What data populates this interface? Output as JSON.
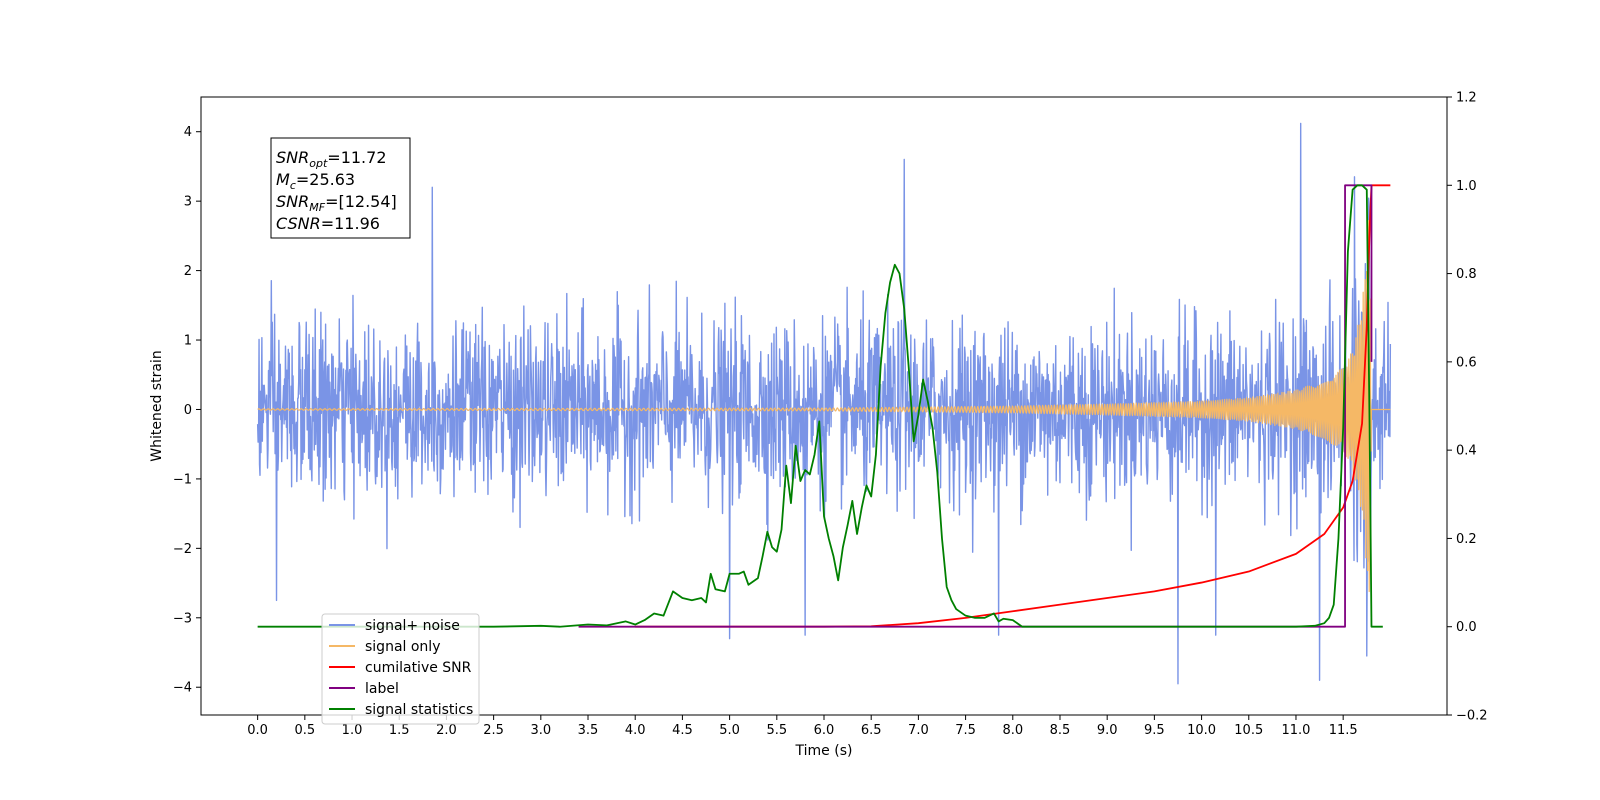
{
  "chart_data": {
    "type": "line",
    "xlabel": "Time (s)",
    "ylabel": "Whitened strain",
    "xlim": [
      -0.6,
      12.6
    ],
    "ylim": [
      -4.4,
      4.5
    ],
    "ylim_right": [
      -0.2,
      1.2
    ],
    "x_ticks": [
      0.0,
      0.5,
      1.0,
      1.5,
      2.0,
      2.5,
      3.0,
      3.5,
      4.0,
      4.5,
      5.0,
      5.5,
      6.0,
      6.5,
      7.0,
      7.5,
      8.0,
      8.5,
      9.0,
      9.5,
      10.0,
      10.5,
      11.0,
      11.5
    ],
    "x_tick_labels": [
      "0.0",
      "0.5",
      "1.0",
      "1.5",
      "2.0",
      "2.5",
      "3.0",
      "3.5",
      "4.0",
      "4.5",
      "5.0",
      "5.5",
      "6.0",
      "6.5",
      "7.0",
      "7.5",
      "8.0",
      "8.5",
      "9.0",
      "9.5",
      "10.0",
      "10.5",
      "11.0",
      "11.5"
    ],
    "y_ticks": [
      -4,
      -3,
      -2,
      -1,
      0,
      1,
      2,
      3,
      4
    ],
    "y_tick_labels": [
      "−4",
      "−3",
      "−2",
      "−1",
      "0",
      "1",
      "2",
      "3",
      "4"
    ],
    "y2_ticks": [
      -0.2,
      0.0,
      0.2,
      0.4,
      0.6,
      0.8,
      1.0,
      1.2
    ],
    "y2_tick_labels": [
      "−0.2",
      "0.0",
      "0.2",
      "0.4",
      "0.6",
      "0.8",
      "1.0",
      "1.2"
    ],
    "grid": false,
    "legend_placement": "lower-left",
    "annotation": {
      "lines": [
        {
          "sym": "SNR",
          "sub": "opt",
          "rest": "=11.72"
        },
        {
          "sym": "M",
          "sub": "c",
          "rest": "=25.63"
        },
        {
          "sym": "SNR",
          "sub": "MF",
          "rest": "=[12.54]"
        },
        {
          "sym": "CSNR",
          "sub": "",
          "rest": "=11.96"
        }
      ]
    },
    "series": [
      {
        "name": "signal+ noise",
        "color": "#7a94e6",
        "axis": "left",
        "x_range": [
          0.0,
          12.0
        ],
        "typical_amplitude": 1.3,
        "observed_max": 4.12,
        "observed_min": -3.95,
        "spikes": [
          {
            "x": 11.05,
            "y": 4.12
          },
          {
            "x": 6.85,
            "y": 3.6
          },
          {
            "x": 1.85,
            "y": 3.2
          },
          {
            "x": 11.62,
            "y": 3.35
          },
          {
            "x": 9.75,
            "y": -3.95
          },
          {
            "x": 11.25,
            "y": -3.9
          },
          {
            "x": 11.75,
            "y": -3.55
          },
          {
            "x": 5.0,
            "y": -3.3
          },
          {
            "x": 10.15,
            "y": -3.25
          },
          {
            "x": 5.8,
            "y": -3.25
          },
          {
            "x": 7.85,
            "y": -3.25
          },
          {
            "x": 0.2,
            "y": -2.75
          }
        ]
      },
      {
        "name": "signal only",
        "color": "#f5b866",
        "axis": "left",
        "x_range": [
          0.0,
          12.0
        ],
        "envelope": [
          [
            0.0,
            0.01
          ],
          [
            6.0,
            0.02
          ],
          [
            8.0,
            0.05
          ],
          [
            9.0,
            0.08
          ],
          [
            10.0,
            0.12
          ],
          [
            10.5,
            0.17
          ],
          [
            11.0,
            0.28
          ],
          [
            11.3,
            0.42
          ],
          [
            11.5,
            0.6
          ],
          [
            11.6,
            0.85
          ],
          [
            11.7,
            1.5
          ],
          [
            11.75,
            2.3
          ],
          [
            11.78,
            3.0
          ],
          [
            11.8,
            0.0
          ]
        ]
      },
      {
        "name": "cumilative SNR",
        "color": "#ff0000",
        "axis": "right",
        "points": [
          [
            4.0,
            0.0
          ],
          [
            6.0,
            0.0
          ],
          [
            6.5,
            0.001
          ],
          [
            7.0,
            0.008
          ],
          [
            7.5,
            0.02
          ],
          [
            8.0,
            0.035
          ],
          [
            8.5,
            0.05
          ],
          [
            9.0,
            0.065
          ],
          [
            9.5,
            0.08
          ],
          [
            10.0,
            0.1
          ],
          [
            10.5,
            0.125
          ],
          [
            11.0,
            0.165
          ],
          [
            11.3,
            0.21
          ],
          [
            11.5,
            0.27
          ],
          [
            11.6,
            0.33
          ],
          [
            11.7,
            0.46
          ],
          [
            11.75,
            0.68
          ],
          [
            11.78,
            0.9
          ],
          [
            11.8,
            1.0
          ],
          [
            12.0,
            1.0
          ]
        ]
      },
      {
        "name": "label",
        "color": "#800080",
        "axis": "right",
        "points": [
          [
            3.4,
            0.0
          ],
          [
            11.52,
            0.0
          ],
          [
            11.52,
            1.0
          ],
          [
            11.8,
            1.0
          ],
          [
            11.8,
            0.6
          ]
        ]
      },
      {
        "name": "signal statistics",
        "color": "#008000",
        "axis": "right",
        "points": [
          [
            0.0,
            0.0
          ],
          [
            2.5,
            0.0
          ],
          [
            3.0,
            0.002
          ],
          [
            3.2,
            0.0
          ],
          [
            3.5,
            0.005
          ],
          [
            3.7,
            0.003
          ],
          [
            3.9,
            0.012
          ],
          [
            4.0,
            0.005
          ],
          [
            4.1,
            0.015
          ],
          [
            4.2,
            0.03
          ],
          [
            4.3,
            0.025
          ],
          [
            4.4,
            0.08
          ],
          [
            4.5,
            0.065
          ],
          [
            4.6,
            0.06
          ],
          [
            4.7,
            0.065
          ],
          [
            4.75,
            0.055
          ],
          [
            4.8,
            0.12
          ],
          [
            4.85,
            0.085
          ],
          [
            4.95,
            0.08
          ],
          [
            5.0,
            0.12
          ],
          [
            5.05,
            0.12
          ],
          [
            5.1,
            0.12
          ],
          [
            5.15,
            0.125
          ],
          [
            5.2,
            0.095
          ],
          [
            5.3,
            0.11
          ],
          [
            5.35,
            0.16
          ],
          [
            5.4,
            0.215
          ],
          [
            5.45,
            0.18
          ],
          [
            5.5,
            0.17
          ],
          [
            5.55,
            0.22
          ],
          [
            5.6,
            0.365
          ],
          [
            5.65,
            0.28
          ],
          [
            5.7,
            0.41
          ],
          [
            5.75,
            0.33
          ],
          [
            5.8,
            0.355
          ],
          [
            5.85,
            0.345
          ],
          [
            5.9,
            0.39
          ],
          [
            5.95,
            0.465
          ],
          [
            6.0,
            0.25
          ],
          [
            6.05,
            0.2
          ],
          [
            6.1,
            0.16
          ],
          [
            6.15,
            0.105
          ],
          [
            6.2,
            0.18
          ],
          [
            6.25,
            0.23
          ],
          [
            6.3,
            0.285
          ],
          [
            6.35,
            0.21
          ],
          [
            6.4,
            0.27
          ],
          [
            6.45,
            0.32
          ],
          [
            6.5,
            0.295
          ],
          [
            6.55,
            0.39
          ],
          [
            6.6,
            0.59
          ],
          [
            6.65,
            0.71
          ],
          [
            6.7,
            0.78
          ],
          [
            6.75,
            0.82
          ],
          [
            6.8,
            0.8
          ],
          [
            6.85,
            0.72
          ],
          [
            6.9,
            0.58
          ],
          [
            6.95,
            0.42
          ],
          [
            7.0,
            0.48
          ],
          [
            7.05,
            0.56
          ],
          [
            7.1,
            0.51
          ],
          [
            7.15,
            0.45
          ],
          [
            7.2,
            0.35
          ],
          [
            7.25,
            0.2
          ],
          [
            7.3,
            0.09
          ],
          [
            7.35,
            0.06
          ],
          [
            7.4,
            0.04
          ],
          [
            7.5,
            0.025
          ],
          [
            7.6,
            0.02
          ],
          [
            7.7,
            0.02
          ],
          [
            7.8,
            0.03
          ],
          [
            7.85,
            0.012
          ],
          [
            7.9,
            0.018
          ],
          [
            8.0,
            0.015
          ],
          [
            8.1,
            0.0
          ],
          [
            8.3,
            0.0
          ],
          [
            11.0,
            0.0
          ],
          [
            11.2,
            0.002
          ],
          [
            11.3,
            0.008
          ],
          [
            11.35,
            0.02
          ],
          [
            11.4,
            0.05
          ],
          [
            11.45,
            0.2
          ],
          [
            11.5,
            0.45
          ],
          [
            11.55,
            0.85
          ],
          [
            11.6,
            0.99
          ],
          [
            11.65,
            1.0
          ],
          [
            11.7,
            1.0
          ],
          [
            11.75,
            0.99
          ],
          [
            11.78,
            0.45
          ],
          [
            11.8,
            0.0
          ],
          [
            11.92,
            0.0
          ]
        ]
      }
    ]
  }
}
